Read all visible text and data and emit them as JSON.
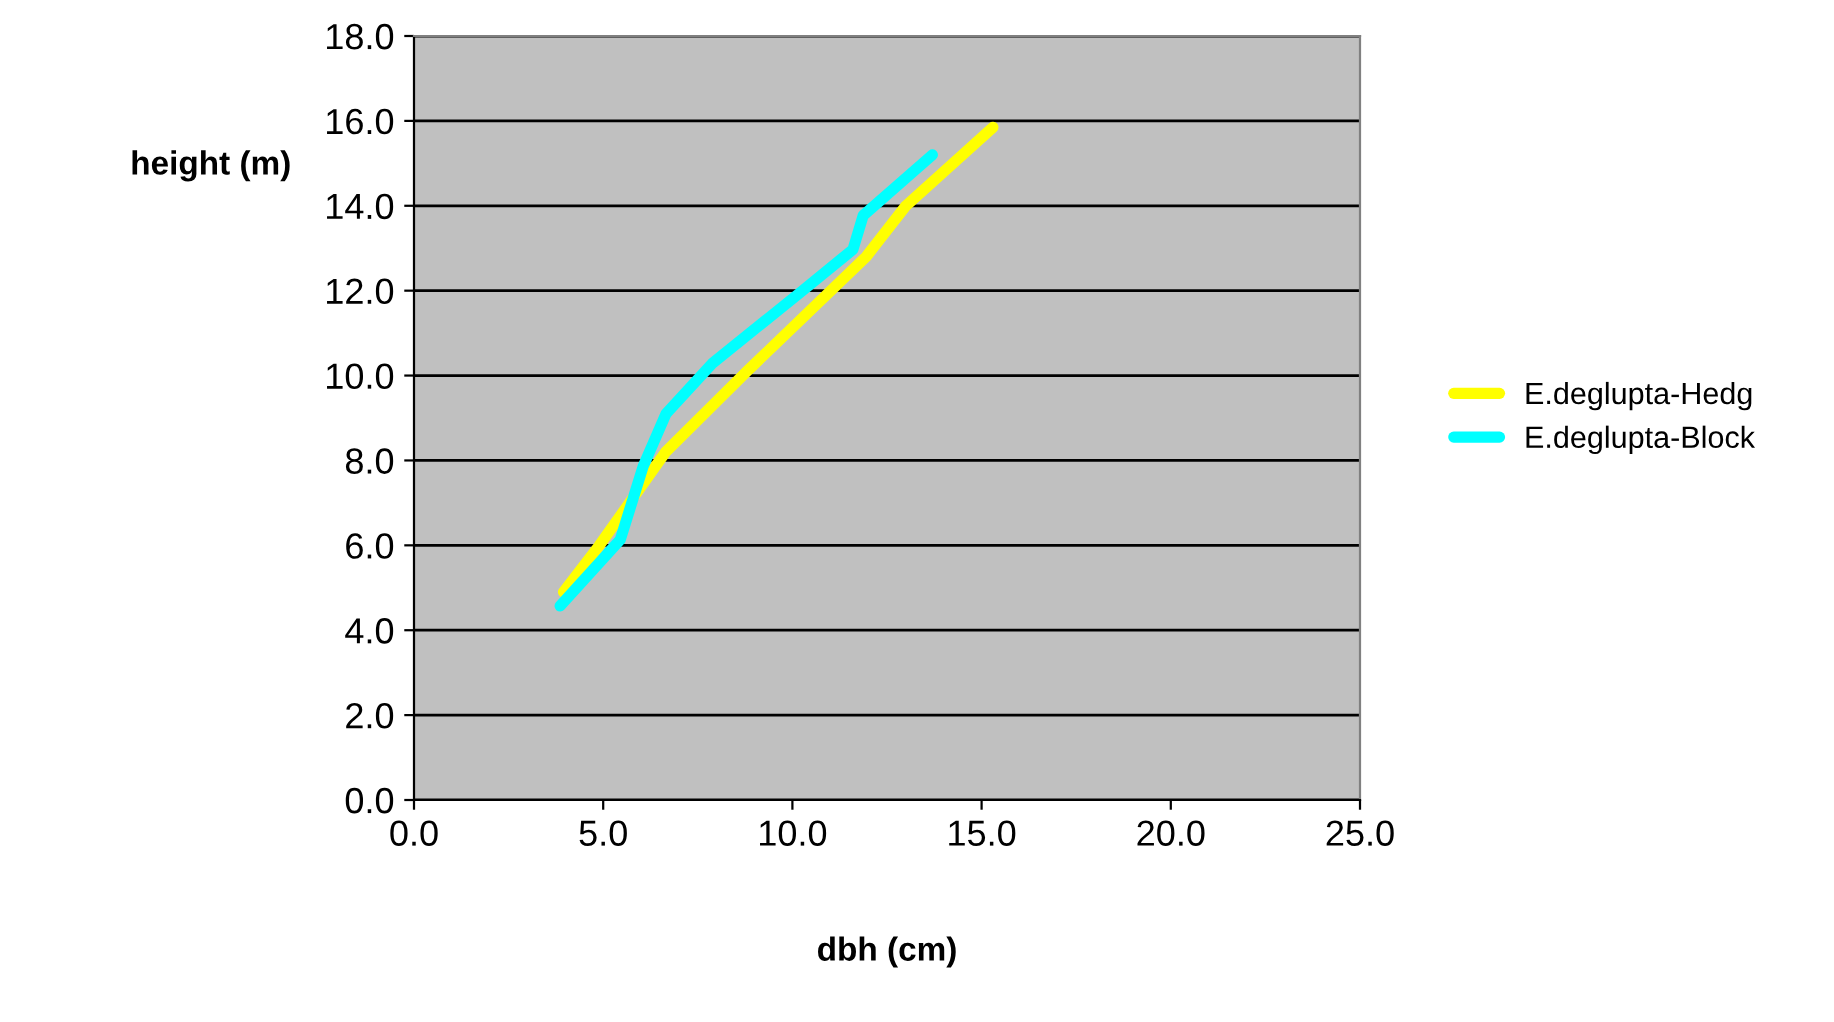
{
  "chart_data": {
    "type": "line",
    "xlabel": "dbh (cm)",
    "ylabel": "height (m)",
    "xlim": [
      0,
      25
    ],
    "xticks": [
      {
        "value": 0,
        "label": "0.0"
      },
      {
        "value": 5,
        "label": "5.0"
      },
      {
        "value": 10,
        "label": "10.0"
      },
      {
        "value": 15,
        "label": "15.0"
      },
      {
        "value": 20,
        "label": "20.0"
      },
      {
        "value": 25,
        "label": "25.0"
      }
    ],
    "ylim": [
      0,
      18
    ],
    "yticks": [
      {
        "value": 0,
        "label": "0.0"
      },
      {
        "value": 2,
        "label": "2.0"
      },
      {
        "value": 4,
        "label": "4.0"
      },
      {
        "value": 6,
        "label": "6.0"
      },
      {
        "value": 8,
        "label": "8.0"
      },
      {
        "value": 10,
        "label": "10.0"
      },
      {
        "value": 12,
        "label": "12.0"
      },
      {
        "value": 14,
        "label": "14.0"
      },
      {
        "value": 16,
        "label": "16.0"
      },
      {
        "value": 18,
        "label": "18.0"
      }
    ],
    "grid": "y",
    "legend": "right",
    "marker": "none",
    "line_style": "solid",
    "series": [
      {
        "name": "E.deglupta-Hedg",
        "color": "#ffff00",
        "x": [
          3.95,
          4.9,
          6.65,
          8.8,
          11.95,
          13.0,
          15.3
        ],
        "values": [
          4.9,
          6.0,
          8.2,
          10.1,
          12.8,
          14.0,
          15.85
        ]
      },
      {
        "name": "E.deglupta-Block",
        "color": "#00ffff",
        "x": [
          3.86,
          5.45,
          6.06,
          6.66,
          7.9,
          10.2,
          11.6,
          11.87,
          13.7
        ],
        "values": [
          4.57,
          6.13,
          7.87,
          9.1,
          10.3,
          11.95,
          12.97,
          13.77,
          15.2
        ]
      }
    ]
  }
}
